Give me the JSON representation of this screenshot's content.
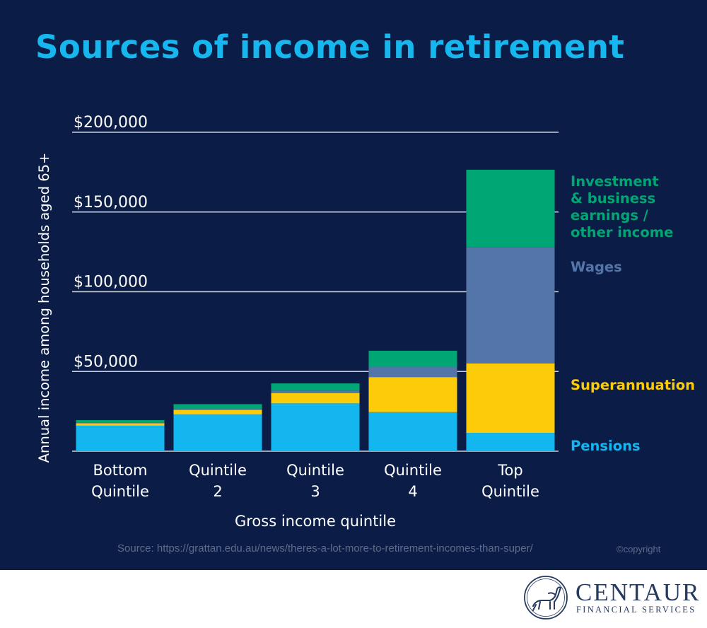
{
  "title": "Sources of income in retirement",
  "chart_data": {
    "type": "bar",
    "stacked": true,
    "categories": [
      [
        "Bottom",
        "Quintile"
      ],
      [
        "Quintile",
        "2"
      ],
      [
        "Quintile",
        "3"
      ],
      [
        "Quintile",
        "4"
      ],
      [
        "Top",
        "Quintile"
      ]
    ],
    "series": [
      {
        "name": "Pensions",
        "color": "#13b6ef",
        "values": [
          16000,
          23000,
          30000,
          24500,
          11500
        ]
      },
      {
        "name": "Superannuation",
        "color": "#fccb0a",
        "values": [
          1500,
          3000,
          6500,
          22000,
          43500
        ]
      },
      {
        "name": "Wages",
        "color": "#5475a8",
        "values": [
          500,
          500,
          1500,
          6500,
          73000
        ]
      },
      {
        "name": "Investment & business earnings / other income",
        "label_lines": [
          "Investment",
          "& business",
          "earnings /",
          "other income"
        ],
        "color": "#00a673",
        "values": [
          1500,
          3000,
          4500,
          10000,
          48500
        ]
      }
    ],
    "y_ticks": [
      "$200,000",
      "$150,000",
      "$100,000",
      "$50,000"
    ],
    "y_tick_values": [
      200000,
      150000,
      100000,
      50000
    ],
    "ylim": [
      0,
      200000
    ],
    "ylabel": "Annual income among households aged 65+",
    "xlabel": "Gross income quintile",
    "grid": true,
    "legend": "right, labels beside top bar"
  },
  "source": "Source: https://grattan.edu.au/news/theres-a-lot-more-to-retirement-incomes-than-super/",
  "copyright": "©copyright",
  "logo": {
    "name": "CENTAUR",
    "subtitle": "FINANCIAL SERVICES"
  },
  "colors": {
    "background": "#0b1d47",
    "title": "#16b7ee",
    "grid": "#c9cfdc",
    "text": "#ffffff"
  }
}
